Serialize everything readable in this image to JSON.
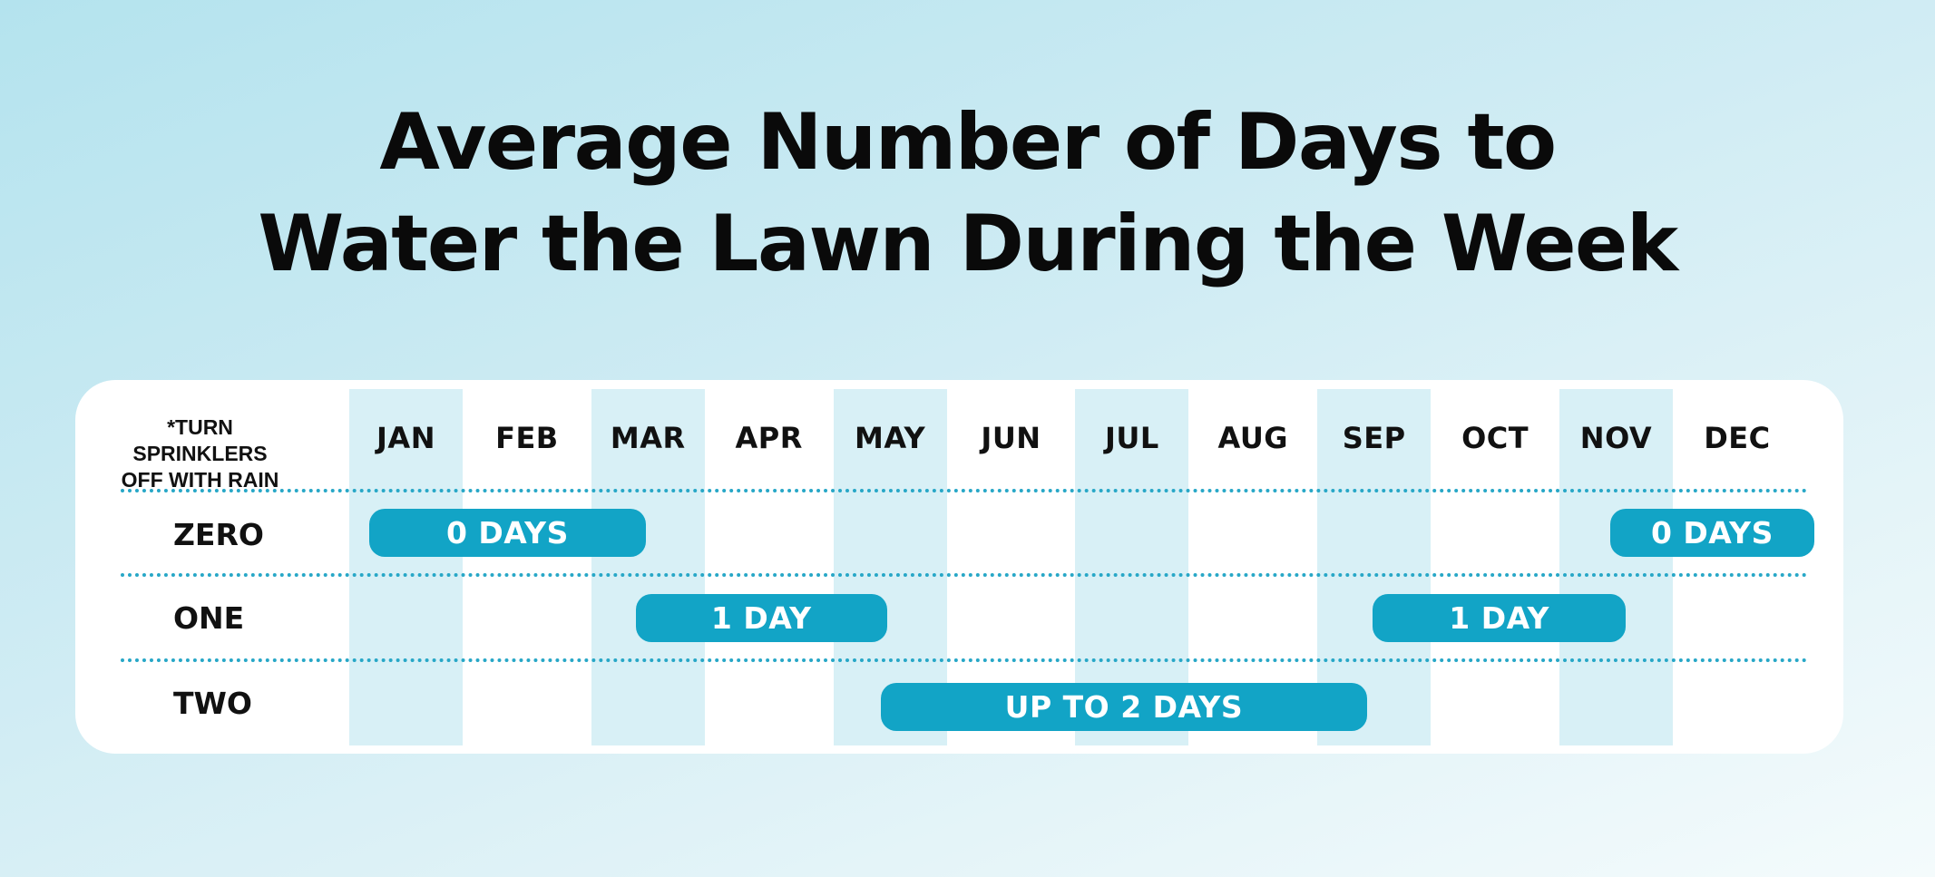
{
  "chart_data": {
    "type": "table",
    "title_lines": [
      "Average Number of Days to",
      "Water the Lawn During the Week"
    ],
    "note_lines": [
      "*TURN SPRINKLERS",
      "OFF WITH RAIN"
    ],
    "months": [
      "JAN",
      "FEB",
      "MAR",
      "APR",
      "MAY",
      "JUN",
      "JUL",
      "AUG",
      "SEP",
      "OCT",
      "NOV",
      "DEC"
    ],
    "rows": [
      {
        "label": "ZERO",
        "bars": [
          {
            "label": "0 DAYS",
            "start_month": "JAN",
            "end_month": "MAR"
          },
          {
            "label": "0 DAYS",
            "start_month": "NOV",
            "end_month": "DEC"
          }
        ]
      },
      {
        "label": "ONE",
        "bars": [
          {
            "label": "1 DAY",
            "start_month": "MAR",
            "end_month": "MAY"
          },
          {
            "label": "1 DAY",
            "start_month": "SEP",
            "end_month": "NOV"
          }
        ]
      },
      {
        "label": "TWO",
        "bars": [
          {
            "label": "UP TO 2 DAYS",
            "start_month": "MAY",
            "end_month": "SEP"
          }
        ]
      }
    ],
    "shaded_months": [
      "JAN",
      "MAR",
      "MAY",
      "JUL",
      "SEP",
      "NOV"
    ],
    "colors": {
      "bar": "#12a4c6",
      "shade": "#d8f0f6",
      "divider": "#27a7c7",
      "card": "#ffffff"
    }
  }
}
